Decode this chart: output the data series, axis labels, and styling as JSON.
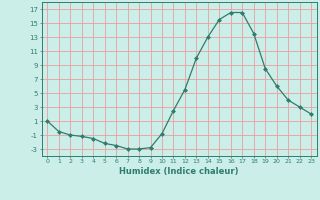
{
  "x": [
    0,
    1,
    2,
    3,
    4,
    5,
    6,
    7,
    8,
    9,
    10,
    11,
    12,
    13,
    14,
    15,
    16,
    17,
    18,
    19,
    20,
    21,
    22,
    23
  ],
  "y": [
    1,
    -0.5,
    -1,
    -1.2,
    -1.5,
    -2.2,
    -2.5,
    -3.0,
    -3.0,
    -2.8,
    -0.8,
    2.5,
    5.5,
    10,
    13,
    15.5,
    16.5,
    16.5,
    13.5,
    8.5,
    6,
    4,
    3,
    2
  ],
  "line_color": "#2e7d6e",
  "marker": "D",
  "marker_size": 2,
  "bg_color": "#cceee8",
  "grid_color": "#e8a0a0",
  "xlabel": "Humidex (Indice chaleur)",
  "ylim": [
    -4,
    18
  ],
  "yticks": [
    -3,
    -1,
    1,
    3,
    5,
    7,
    9,
    11,
    13,
    15,
    17
  ],
  "xlim": [
    -0.5,
    23.5
  ],
  "xticks": [
    0,
    1,
    2,
    3,
    4,
    5,
    6,
    7,
    8,
    9,
    10,
    11,
    12,
    13,
    14,
    15,
    16,
    17,
    18,
    19,
    20,
    21,
    22,
    23
  ]
}
